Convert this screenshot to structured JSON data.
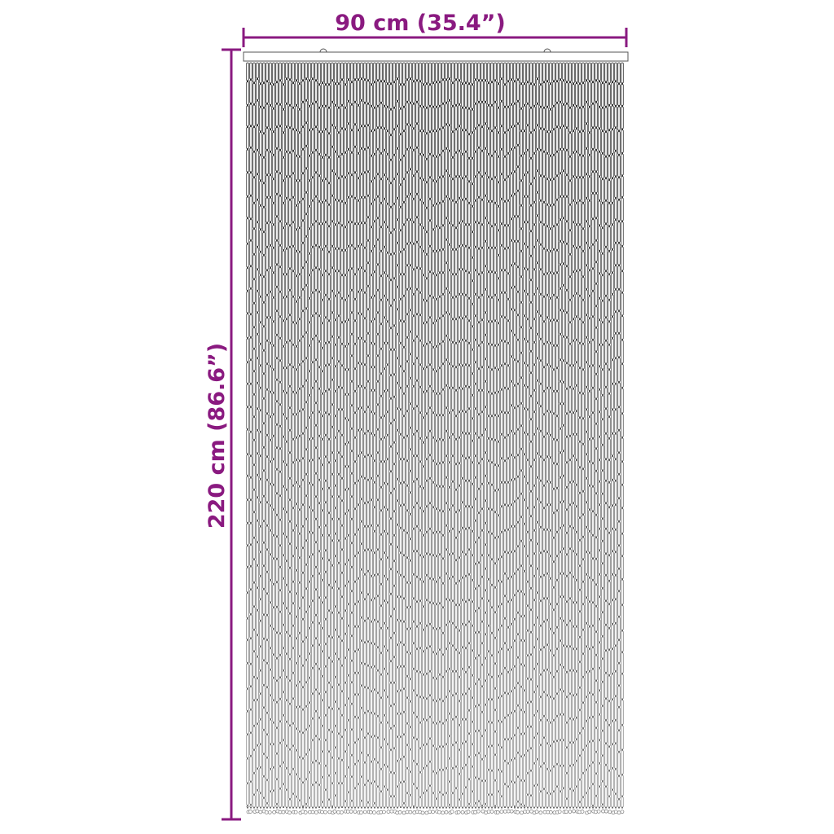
{
  "dimensions": {
    "width_label": "90 cm (35.4”)",
    "height_label": "220 cm (86.6”)"
  },
  "colors": {
    "dimension": "#8a1a80",
    "strand_top": "#2a2a2a",
    "strand_bottom": "#9a9a9a",
    "rod": "#555555"
  },
  "product": "bead-curtain"
}
